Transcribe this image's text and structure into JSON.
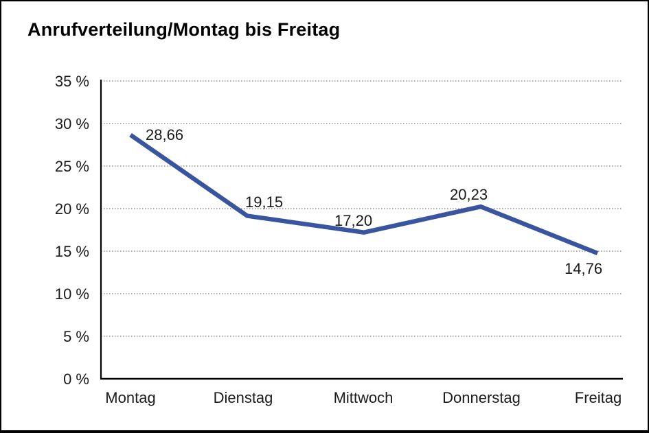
{
  "chart_data": {
    "type": "line",
    "title": "Anrufverteilung/Montag bis Freitag",
    "categories": [
      "Montag",
      "Dienstag",
      "Mittwoch",
      "Donnerstag",
      "Freitag"
    ],
    "values": [
      28.66,
      19.15,
      17.2,
      20.23,
      14.76
    ],
    "point_labels": [
      "28,66",
      "19,15",
      "17,20",
      "20,23",
      "14,76"
    ],
    "xlabel": "",
    "ylabel": "",
    "ylim": [
      0,
      35
    ],
    "ytick_step": 5,
    "ytick_labels": [
      "0 %",
      "5 %",
      "10 %",
      "15 %",
      "20 %",
      "25 %",
      "30 %",
      "35 %"
    ],
    "grid": "horizontal-dotted",
    "legend_position": "none",
    "colors": {
      "line": "#3A55A0",
      "axis": "#000000",
      "gridline": "#777777",
      "text": "#1a1a1a"
    }
  }
}
